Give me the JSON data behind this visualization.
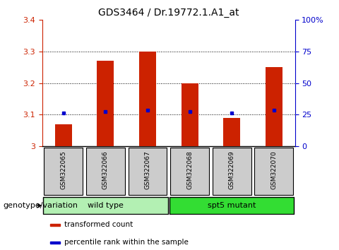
{
  "title": "GDS3464 / Dr.19772.1.A1_at",
  "samples": [
    "GSM322065",
    "GSM322066",
    "GSM322067",
    "GSM322068",
    "GSM322069",
    "GSM322070"
  ],
  "bar_values": [
    3.07,
    3.27,
    3.3,
    3.2,
    3.09,
    3.25
  ],
  "percentile_values": [
    3.105,
    3.11,
    3.115,
    3.11,
    3.105,
    3.115
  ],
  "bar_color": "#cc2200",
  "percentile_color": "#0000cc",
  "y_min": 3.0,
  "y_max": 3.4,
  "y_ticks": [
    3.0,
    3.1,
    3.2,
    3.3,
    3.4
  ],
  "y_tick_labels": [
    "3",
    "3.1",
    "3.2",
    "3.3",
    "3.4"
  ],
  "y2_ticks_pct": [
    0,
    25,
    50,
    75,
    100
  ],
  "y2_tick_labels": [
    "0",
    "25",
    "50",
    "75",
    "100%"
  ],
  "groups": [
    {
      "label": "wild type",
      "start": 0,
      "end": 3,
      "color": "#b3f0b3"
    },
    {
      "label": "spt5 mutant",
      "start": 3,
      "end": 6,
      "color": "#33dd33"
    }
  ],
  "group_label": "genotype/variation",
  "legend_items": [
    {
      "color": "#cc2200",
      "label": "transformed count"
    },
    {
      "color": "#0000cc",
      "label": "percentile rank within the sample"
    }
  ],
  "grid_dotted_at": [
    3.1,
    3.2,
    3.3
  ],
  "bar_width": 0.4,
  "sample_box_color": "#cccccc",
  "title_fontsize": 10,
  "tick_fontsize": 8,
  "sample_fontsize": 6.5,
  "group_fontsize": 8,
  "legend_fontsize": 7.5,
  "group_label_fontsize": 8
}
